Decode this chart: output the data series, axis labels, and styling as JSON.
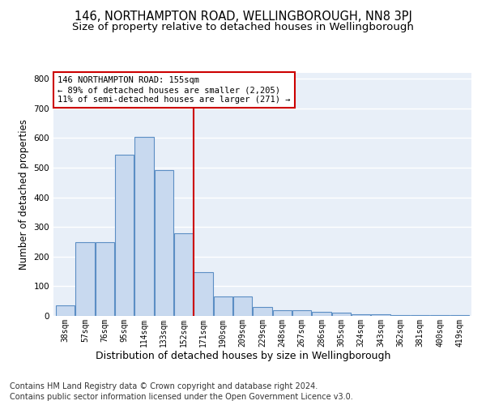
{
  "title": "146, NORTHAMPTON ROAD, WELLINGBOROUGH, NN8 3PJ",
  "subtitle": "Size of property relative to detached houses in Wellingborough",
  "xlabel": "Distribution of detached houses by size in Wellingborough",
  "ylabel": "Number of detached properties",
  "footer_line1": "Contains HM Land Registry data © Crown copyright and database right 2024.",
  "footer_line2": "Contains public sector information licensed under the Open Government Licence v3.0.",
  "bin_labels": [
    "38sqm",
    "57sqm",
    "76sqm",
    "95sqm",
    "114sqm",
    "133sqm",
    "152sqm",
    "171sqm",
    "190sqm",
    "209sqm",
    "229sqm",
    "248sqm",
    "267sqm",
    "286sqm",
    "305sqm",
    "324sqm",
    "343sqm",
    "362sqm",
    "381sqm",
    "400sqm",
    "419sqm"
  ],
  "bar_values": [
    35,
    248,
    248,
    545,
    605,
    493,
    280,
    148,
    65,
    65,
    30,
    20,
    20,
    15,
    10,
    5,
    5,
    3,
    3,
    2,
    2
  ],
  "bar_color": "#c8d9ef",
  "bar_edgecolor": "#5b8ec4",
  "property_line_x": 6.5,
  "property_label": "146 NORTHAMPTON ROAD: 155sqm",
  "annotation_line1": "← 89% of detached houses are smaller (2,205)",
  "annotation_line2": "11% of semi-detached houses are larger (271) →",
  "annotation_box_color": "#ffffff",
  "annotation_box_edgecolor": "#cc0000",
  "vline_color": "#cc0000",
  "ylim": [
    0,
    820
  ],
  "yticks": [
    0,
    100,
    200,
    300,
    400,
    500,
    600,
    700,
    800
  ],
  "background_color": "#e8eff8",
  "grid_color": "#ffffff",
  "title_fontsize": 10.5,
  "subtitle_fontsize": 9.5,
  "ylabel_fontsize": 8.5,
  "xlabel_fontsize": 9,
  "tick_fontsize": 7,
  "footer_fontsize": 7
}
